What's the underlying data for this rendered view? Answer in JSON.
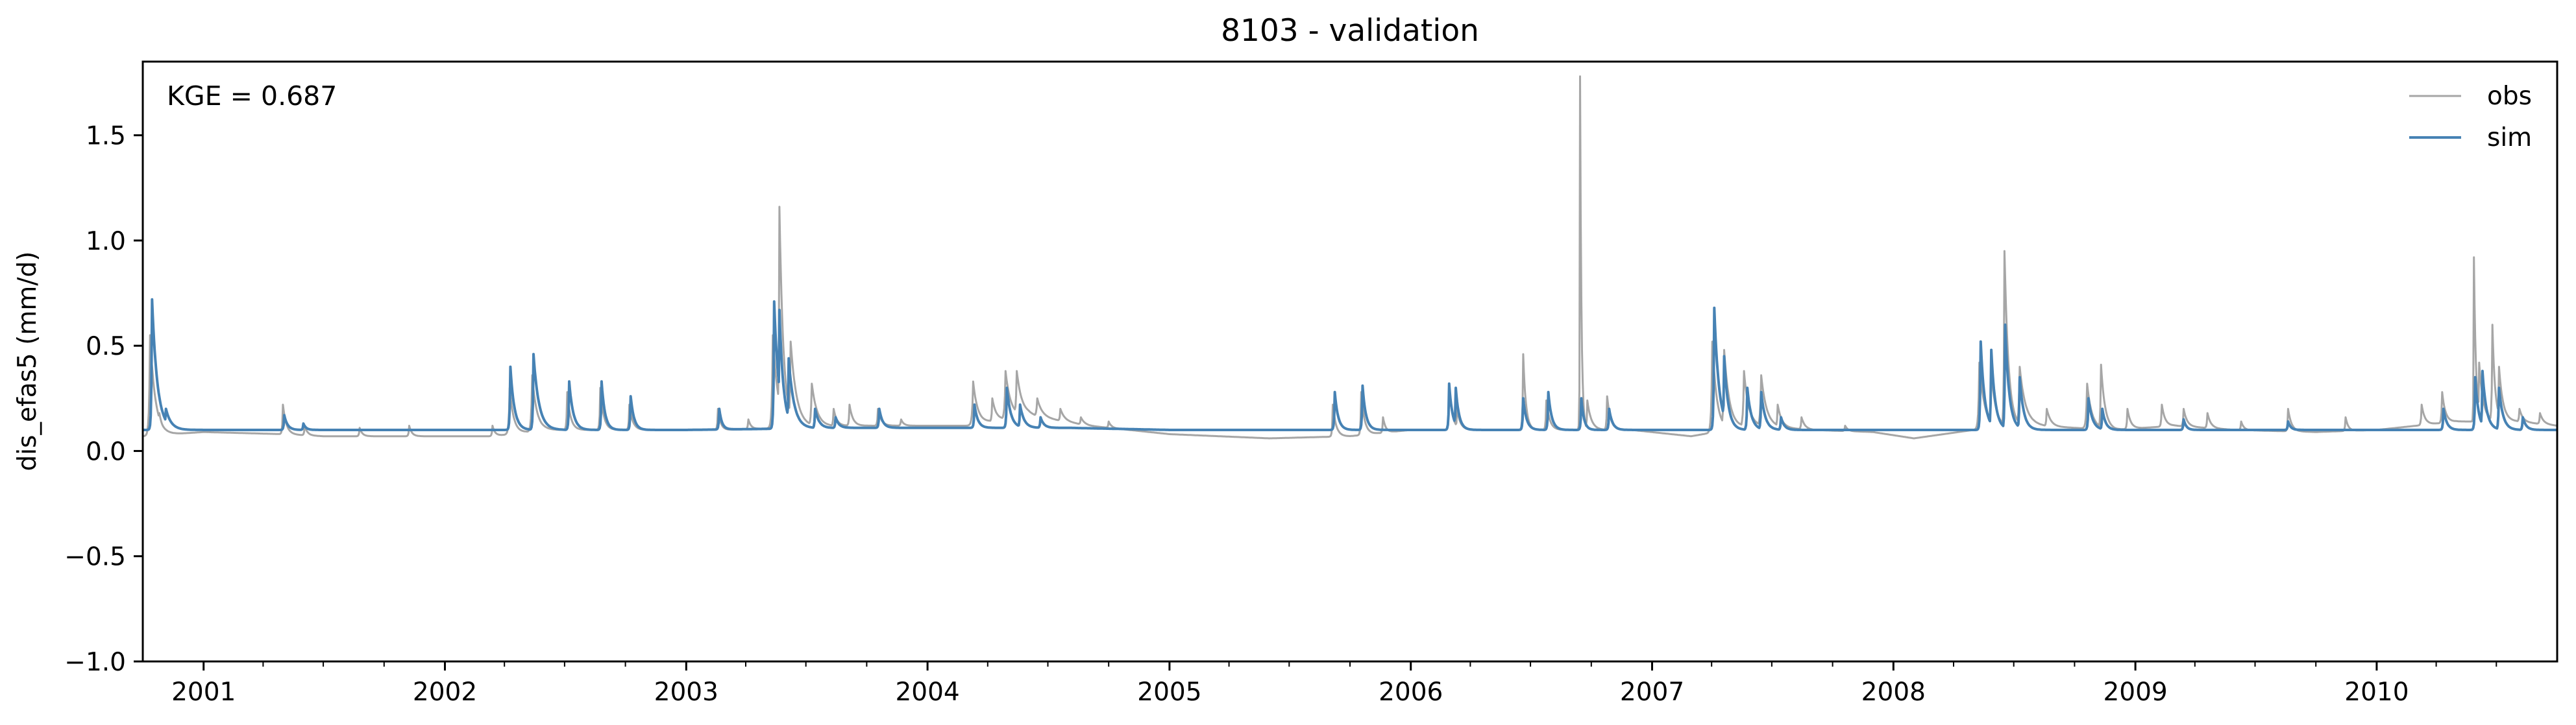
{
  "chart_data": {
    "type": "line",
    "title": "8103 - validation",
    "xlabel": "",
    "ylabel": "dis_efas5 (mm/d)",
    "xlim": [
      "2000-10-01",
      "2010-10-01"
    ],
    "ylim": [
      -1.0,
      1.85
    ],
    "yticks": [
      -1.0,
      -0.5,
      0.0,
      0.5,
      1.0,
      1.5
    ],
    "ytick_labels": [
      "−1.0",
      "−0.5",
      "0.0",
      "0.5",
      "1.0",
      "1.5"
    ],
    "xticks": [
      "2001-01-01",
      "2002-01-01",
      "2003-01-01",
      "2004-01-01",
      "2005-01-01",
      "2006-01-01",
      "2007-01-01",
      "2008-01-01",
      "2009-01-01",
      "2010-01-01"
    ],
    "xtick_labels": [
      "2001",
      "2002",
      "2003",
      "2004",
      "2005",
      "2006",
      "2007",
      "2008",
      "2009",
      "2010"
    ],
    "grid": false,
    "legend": "top-right",
    "annotation": "KGE = 0.687",
    "series": [
      {
        "name": "obs",
        "color": "#a6a6a6",
        "base": [
          [
            "2000-10-01",
            0.07
          ],
          [
            "2001-01-01",
            0.09
          ],
          [
            "2001-05-01",
            0.08
          ],
          [
            "2001-07-01",
            0.07
          ],
          [
            "2002-01-01",
            0.07
          ],
          [
            "2002-03-15",
            0.07
          ],
          [
            "2002-06-01",
            0.1
          ],
          [
            "2002-12-01",
            0.1
          ],
          [
            "2003-03-01",
            0.1
          ],
          [
            "2003-09-01",
            0.12
          ],
          [
            "2004-03-01",
            0.12
          ],
          [
            "2004-06-01",
            0.17
          ],
          [
            "2004-09-01",
            0.12
          ],
          [
            "2005-01-01",
            0.08
          ],
          [
            "2005-06-01",
            0.06
          ],
          [
            "2005-10-01",
            0.07
          ],
          [
            "2006-01-01",
            0.1
          ],
          [
            "2006-06-01",
            0.1
          ],
          [
            "2006-12-01",
            0.1
          ],
          [
            "2007-03-01",
            0.07
          ],
          [
            "2007-06-01",
            0.12
          ],
          [
            "2007-09-01",
            0.1
          ],
          [
            "2007-12-01",
            0.09
          ],
          [
            "2008-02-01",
            0.06
          ],
          [
            "2008-05-01",
            0.1
          ],
          [
            "2008-08-01",
            0.12
          ],
          [
            "2008-12-01",
            0.1
          ],
          [
            "2009-03-01",
            0.12
          ],
          [
            "2009-06-01",
            0.1
          ],
          [
            "2009-10-01",
            0.09
          ],
          [
            "2010-01-01",
            0.1
          ],
          [
            "2010-05-01",
            0.14
          ],
          [
            "2010-08-01",
            0.14
          ],
          [
            "2010-10-01",
            0.12
          ]
        ],
        "peaks": [
          [
            "2000-10-12",
            0.55,
            3,
            8
          ],
          [
            "2000-10-26",
            0.18,
            2,
            6
          ],
          [
            "2001-05-01",
            0.22,
            2,
            5
          ],
          [
            "2001-06-03",
            0.12,
            2,
            4
          ],
          [
            "2001-08-25",
            0.11,
            2,
            4
          ],
          [
            "2001-11-08",
            0.12,
            2,
            4
          ],
          [
            "2002-03-14",
            0.12,
            2,
            4
          ],
          [
            "2002-04-09",
            0.3,
            3,
            6
          ],
          [
            "2002-05-13",
            0.36,
            3,
            7
          ],
          [
            "2002-07-05",
            0.28,
            2,
            5
          ],
          [
            "2002-08-24",
            0.3,
            2,
            5
          ],
          [
            "2002-10-07",
            0.22,
            2,
            5
          ],
          [
            "2003-02-18",
            0.2,
            2,
            4
          ],
          [
            "2003-04-05",
            0.15,
            2,
            4
          ],
          [
            "2003-05-12",
            0.55,
            3,
            8
          ],
          [
            "2003-05-22",
            1.16,
            2,
            6
          ],
          [
            "2003-06-08",
            0.52,
            3,
            9
          ],
          [
            "2003-07-10",
            0.32,
            3,
            8
          ],
          [
            "2003-08-12",
            0.2,
            2,
            5
          ],
          [
            "2003-09-05",
            0.22,
            2,
            5
          ],
          [
            "2003-10-18",
            0.2,
            2,
            5
          ],
          [
            "2003-11-22",
            0.15,
            2,
            4
          ],
          [
            "2004-03-10",
            0.33,
            3,
            7
          ],
          [
            "2004-04-08",
            0.25,
            2,
            6
          ],
          [
            "2004-04-28",
            0.38,
            3,
            8
          ],
          [
            "2004-05-15",
            0.38,
            3,
            8
          ],
          [
            "2004-06-15",
            0.25,
            3,
            7
          ],
          [
            "2004-07-20",
            0.2,
            2,
            6
          ],
          [
            "2004-08-20",
            0.16,
            2,
            5
          ],
          [
            "2004-10-01",
            0.14,
            2,
            4
          ],
          [
            "2005-09-05",
            0.22,
            2,
            5
          ],
          [
            "2005-10-18",
            0.28,
            2,
            5
          ],
          [
            "2005-11-20",
            0.16,
            2,
            4
          ],
          [
            "2006-02-28",
            0.3,
            2,
            5
          ],
          [
            "2006-03-12",
            0.2,
            2,
            5
          ],
          [
            "2006-06-20",
            0.46,
            2,
            4
          ],
          [
            "2006-07-25",
            0.24,
            2,
            5
          ],
          [
            "2006-09-14",
            1.78,
            1,
            2
          ],
          [
            "2006-09-25",
            0.24,
            2,
            6
          ],
          [
            "2006-10-25",
            0.26,
            2,
            5
          ],
          [
            "2007-04-02",
            0.52,
            3,
            7
          ],
          [
            "2007-04-20",
            0.48,
            3,
            8
          ],
          [
            "2007-05-20",
            0.38,
            3,
            7
          ],
          [
            "2007-06-15",
            0.36,
            3,
            8
          ],
          [
            "2007-07-10",
            0.22,
            2,
            6
          ],
          [
            "2007-08-15",
            0.16,
            2,
            5
          ],
          [
            "2007-10-20",
            0.12,
            2,
            4
          ],
          [
            "2008-05-10",
            0.42,
            3,
            8
          ],
          [
            "2008-05-28",
            0.38,
            3,
            7
          ],
          [
            "2008-06-17",
            0.95,
            2,
            6
          ],
          [
            "2008-07-10",
            0.4,
            3,
            9
          ],
          [
            "2008-08-20",
            0.2,
            2,
            6
          ],
          [
            "2008-10-20",
            0.32,
            3,
            7
          ],
          [
            "2008-11-10",
            0.41,
            2,
            6
          ],
          [
            "2008-12-20",
            0.2,
            2,
            5
          ],
          [
            "2009-02-10",
            0.22,
            2,
            5
          ],
          [
            "2009-03-15",
            0.2,
            2,
            5
          ],
          [
            "2009-04-20",
            0.18,
            2,
            5
          ],
          [
            "2009-06-10",
            0.14,
            2,
            4
          ],
          [
            "2009-08-20",
            0.2,
            2,
            5
          ],
          [
            "2009-11-15",
            0.16,
            2,
            4
          ],
          [
            "2010-03-10",
            0.22,
            2,
            5
          ],
          [
            "2010-04-10",
            0.28,
            2,
            5
          ],
          [
            "2010-05-28",
            0.92,
            1,
            3
          ],
          [
            "2010-06-05",
            0.42,
            2,
            6
          ],
          [
            "2010-06-25",
            0.6,
            2,
            4
          ],
          [
            "2010-07-05",
            0.4,
            2,
            6
          ],
          [
            "2010-08-05",
            0.2,
            2,
            5
          ],
          [
            "2010-09-05",
            0.18,
            2,
            5
          ]
        ]
      },
      {
        "name": "sim",
        "color": "#4682b4",
        "base": [
          [
            "2000-10-01",
            0.1
          ],
          [
            "2001-03-01",
            0.1
          ],
          [
            "2001-06-01",
            0.1
          ],
          [
            "2002-01-01",
            0.1
          ],
          [
            "2003-01-01",
            0.1
          ],
          [
            "2003-09-01",
            0.11
          ],
          [
            "2004-03-01",
            0.11
          ],
          [
            "2004-08-01",
            0.11
          ],
          [
            "2005-01-01",
            0.1
          ],
          [
            "2006-01-01",
            0.1
          ],
          [
            "2007-01-01",
            0.1
          ],
          [
            "2008-01-01",
            0.1
          ],
          [
            "2009-01-01",
            0.1
          ],
          [
            "2010-01-01",
            0.1
          ],
          [
            "2010-10-01",
            0.1
          ]
        ],
        "peaks": [
          [
            "2000-10-15",
            0.72,
            2,
            8
          ],
          [
            "2000-11-05",
            0.2,
            2,
            8
          ],
          [
            "2001-05-03",
            0.17,
            2,
            5
          ],
          [
            "2001-06-01",
            0.13,
            2,
            4
          ],
          [
            "2002-04-10",
            0.4,
            2,
            6
          ],
          [
            "2002-05-15",
            0.46,
            2,
            8
          ],
          [
            "2002-07-08",
            0.33,
            2,
            6
          ],
          [
            "2002-08-26",
            0.33,
            2,
            5
          ],
          [
            "2002-10-09",
            0.26,
            2,
            5
          ],
          [
            "2003-02-20",
            0.2,
            2,
            4
          ],
          [
            "2003-05-14",
            0.71,
            2,
            7
          ],
          [
            "2003-05-22",
            0.67,
            2,
            6
          ],
          [
            "2003-06-05",
            0.44,
            2,
            8
          ],
          [
            "2003-07-15",
            0.2,
            2,
            6
          ],
          [
            "2003-08-15",
            0.16,
            2,
            5
          ],
          [
            "2003-10-20",
            0.2,
            2,
            5
          ],
          [
            "2004-03-12",
            0.22,
            2,
            5
          ],
          [
            "2004-04-30",
            0.3,
            2,
            6
          ],
          [
            "2004-05-20",
            0.22,
            2,
            6
          ],
          [
            "2004-06-20",
            0.16,
            2,
            5
          ],
          [
            "2005-09-08",
            0.28,
            2,
            5
          ],
          [
            "2005-10-20",
            0.31,
            2,
            5
          ],
          [
            "2006-02-28",
            0.32,
            2,
            5
          ],
          [
            "2006-03-10",
            0.3,
            2,
            5
          ],
          [
            "2006-06-20",
            0.25,
            2,
            5
          ],
          [
            "2006-07-28",
            0.28,
            2,
            5
          ],
          [
            "2006-09-16",
            0.25,
            2,
            4
          ],
          [
            "2006-10-28",
            0.2,
            2,
            5
          ],
          [
            "2007-04-05",
            0.68,
            2,
            7
          ],
          [
            "2007-04-20",
            0.45,
            2,
            6
          ],
          [
            "2007-05-25",
            0.3,
            2,
            6
          ],
          [
            "2007-06-15",
            0.28,
            2,
            6
          ],
          [
            "2007-07-15",
            0.16,
            2,
            5
          ],
          [
            "2008-05-12",
            0.52,
            2,
            6
          ],
          [
            "2008-05-28",
            0.48,
            2,
            6
          ],
          [
            "2008-06-18",
            0.6,
            2,
            6
          ],
          [
            "2008-07-10",
            0.35,
            2,
            6
          ],
          [
            "2008-10-22",
            0.25,
            2,
            6
          ],
          [
            "2008-11-12",
            0.2,
            2,
            5
          ],
          [
            "2009-03-15",
            0.15,
            2,
            4
          ],
          [
            "2009-08-20",
            0.14,
            2,
            4
          ],
          [
            "2010-04-12",
            0.2,
            2,
            5
          ],
          [
            "2010-05-30",
            0.35,
            2,
            5
          ],
          [
            "2010-06-10",
            0.38,
            2,
            6
          ],
          [
            "2010-07-05",
            0.3,
            2,
            6
          ],
          [
            "2010-08-10",
            0.16,
            2,
            5
          ]
        ]
      }
    ]
  }
}
